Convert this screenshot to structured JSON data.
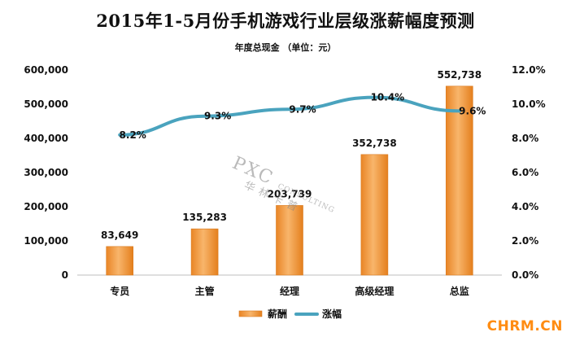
{
  "page": {
    "title": "2015年1-5月份手机游戏行业层级涨薪幅度预测",
    "subtitle": "年度总现金  （单位：元）",
    "watermark": {
      "main": "PXC",
      "sub": "CONSULTING",
      "cn": "华林卡普"
    },
    "brand": "CHRM.CN"
  },
  "chart_data": {
    "type": "bar",
    "categories": [
      "专员",
      "主管",
      "经理",
      "高级经理",
      "总监"
    ],
    "series": [
      {
        "name": "薪酬",
        "type": "bar",
        "values": [
          83649,
          135283,
          203739,
          352738,
          552738
        ],
        "labels": [
          "83,649",
          "135,283",
          "203,739",
          "352,738",
          "552,738"
        ],
        "color": "#f4a14e"
      },
      {
        "name": "涨幅",
        "type": "line",
        "values": [
          8.2,
          9.3,
          9.7,
          10.4,
          9.6
        ],
        "labels": [
          "8.2%",
          "9.3%",
          "9.7%",
          "10.4%",
          "9.6%"
        ],
        "color": "#4aa3be"
      }
    ],
    "ylim": [
      0,
      600000
    ],
    "y_ticks": [
      "0",
      "100,000",
      "200,000",
      "300,000",
      "400,000",
      "500,000",
      "600,000"
    ],
    "y2lim": [
      0,
      12
    ],
    "y2_ticks": [
      "0.0%",
      "2.0%",
      "4.0%",
      "6.0%",
      "8.0%",
      "10.0%",
      "12.0%"
    ],
    "grid": false,
    "legend_position": "bottom"
  }
}
